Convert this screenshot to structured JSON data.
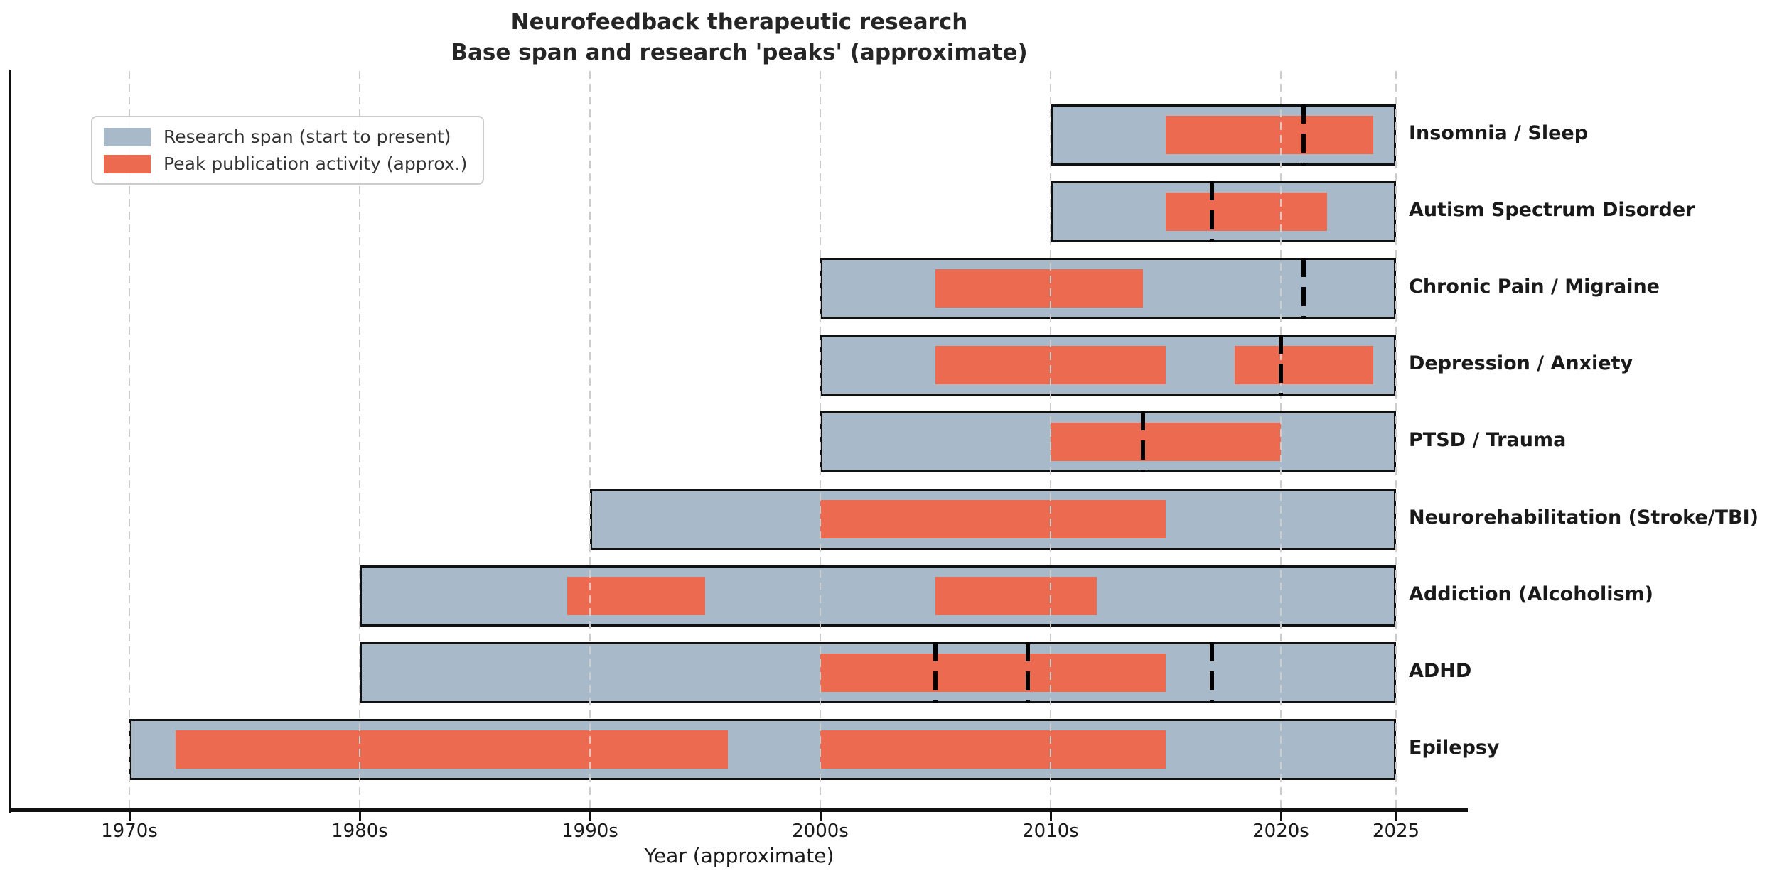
{
  "title": {
    "line1": "Neurofeedback therapeutic research",
    "line2": "Base span and research 'peaks' (approximate)"
  },
  "axis": {
    "xlabel": "Year (approximate)"
  },
  "legend": {
    "items": [
      {
        "label": "Research span (start to present)",
        "color": "#a8b9ca"
      },
      {
        "label": "Peak publication activity (approx.)",
        "color": "#ec6a4f"
      }
    ]
  },
  "chart_data": {
    "type": "bar",
    "variant": "horizontal-timeline-gantt",
    "title": "Neurofeedback therapeutic research — Base span and research 'peaks' (approximate)",
    "xlabel": "Year (approximate)",
    "xlim": [
      1965,
      2028
    ],
    "grid": true,
    "legend_position": "upper-left",
    "colors": {
      "span": "#a8b9ca",
      "peak": "#ec6a4f",
      "marker": "#000000",
      "grid": "#cccccc",
      "bar_edge": "#111111",
      "text": "#262626"
    },
    "x_ticks": [
      {
        "label": "1970s",
        "year": 1970
      },
      {
        "label": "1980s",
        "year": 1980
      },
      {
        "label": "1990s",
        "year": 1990
      },
      {
        "label": "2000s",
        "year": 2000
      },
      {
        "label": "2010s",
        "year": 2010
      },
      {
        "label": "2020s",
        "year": 2020
      },
      {
        "label": "2025",
        "year": 2025
      }
    ],
    "rows": [
      {
        "label": "Insomnia / Sleep",
        "span": [
          2010,
          2025
        ],
        "peaks": [
          [
            2015,
            2024
          ]
        ],
        "markers": [
          2021
        ]
      },
      {
        "label": "Autism Spectrum Disorder",
        "span": [
          2010,
          2025
        ],
        "peaks": [
          [
            2015,
            2022
          ]
        ],
        "markers": [
          2017
        ]
      },
      {
        "label": "Chronic Pain / Migraine",
        "span": [
          2000,
          2025
        ],
        "peaks": [
          [
            2005,
            2014
          ]
        ],
        "markers": [
          2021
        ]
      },
      {
        "label": "Depression / Anxiety",
        "span": [
          2000,
          2025
        ],
        "peaks": [
          [
            2005,
            2015
          ],
          [
            2018,
            2024
          ]
        ],
        "markers": [
          2020
        ]
      },
      {
        "label": "PTSD / Trauma",
        "span": [
          2000,
          2025
        ],
        "peaks": [
          [
            2010,
            2020
          ]
        ],
        "markers": [
          2014
        ]
      },
      {
        "label": "Neurorehabilitation (Stroke/TBI)",
        "span": [
          1990,
          2025
        ],
        "peaks": [
          [
            2000,
            2015
          ]
        ],
        "markers": []
      },
      {
        "label": "Addiction (Alcoholism)",
        "span": [
          1980,
          2025
        ],
        "peaks": [
          [
            1989,
            1995
          ],
          [
            2005,
            2012
          ]
        ],
        "markers": []
      },
      {
        "label": "ADHD",
        "span": [
          1980,
          2025
        ],
        "peaks": [
          [
            2000,
            2015
          ]
        ],
        "markers": [
          2005,
          2009,
          2017
        ]
      },
      {
        "label": "Epilepsy",
        "span": [
          1970,
          2025
        ],
        "peaks": [
          [
            1972,
            1996
          ],
          [
            2000,
            2015
          ]
        ],
        "markers": []
      }
    ]
  }
}
